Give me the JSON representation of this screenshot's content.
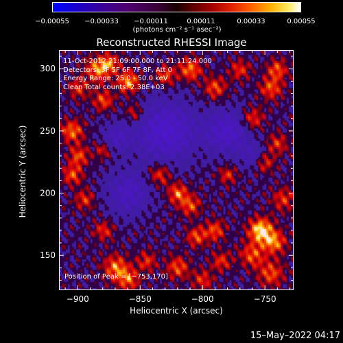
{
  "colorbar": {
    "ticks": [
      "−0.00055",
      "−0.00033",
      "−0.00011",
      "0.00011",
      "0.00033",
      "0.00055"
    ],
    "units": "(photons cm⁻² s⁻¹ asec⁻²)"
  },
  "chart_data": {
    "type": "heatmap",
    "title": "Reconstructed RHESSI Image",
    "xlabel": "Heliocentric X (arcsec)",
    "ylabel": "Heliocentric Y (arcsec)",
    "xlim": [
      -915,
      -727
    ],
    "ylim": [
      122,
      315
    ],
    "xticks": [
      -900,
      -850,
      -800,
      -750
    ],
    "yticks": [
      150,
      200,
      250,
      300
    ],
    "color_range": [
      -0.00055,
      0.00055
    ],
    "peak": [
      -753,
      170
    ],
    "annotations": [
      "11-Oct-2012 21:09:00.000 to 21:11:24.000",
      "Detectors: 3F 5F 6F 7F 8F, Att 0",
      "Energy Range: 25.0 - 50.0 keV",
      "Clean    Total counts: 2.38E+03"
    ],
    "peak_label": "Position of Peak = [−753,170]"
  },
  "footer": {
    "date": "15–May–2022 04:17"
  }
}
